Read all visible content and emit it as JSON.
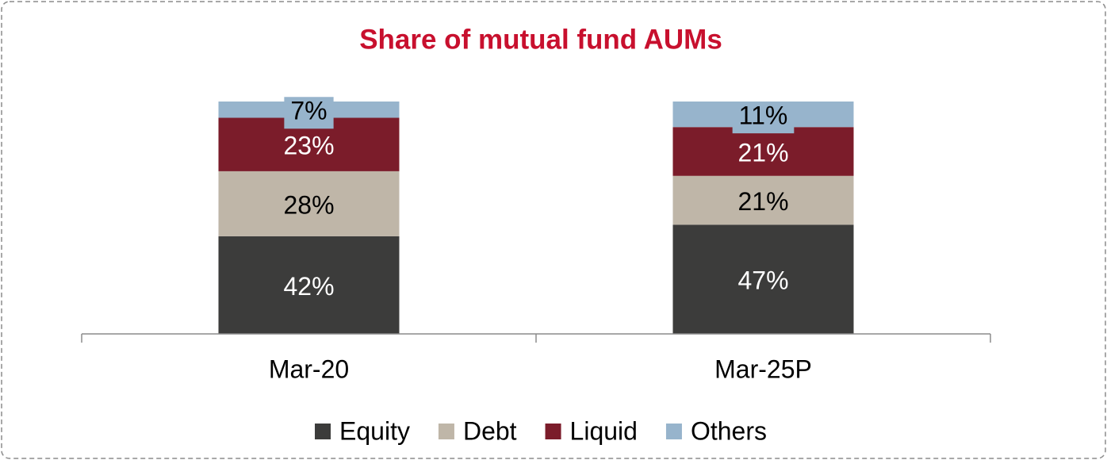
{
  "chart_data": {
    "type": "stacked_bar",
    "title": "Share of mutual fund AUMs",
    "categories": [
      "Mar-20",
      "Mar-25P"
    ],
    "series": [
      {
        "name": "Equity",
        "color": "#3c3c3b",
        "values": [
          42,
          47
        ],
        "value_labels": [
          "42%",
          "47%"
        ]
      },
      {
        "name": "Debt",
        "color": "#bfb6a8",
        "values": [
          28,
          21
        ],
        "value_labels": [
          "28%",
          "21%"
        ]
      },
      {
        "name": "Liquid",
        "color": "#7b1c2a",
        "values": [
          23,
          21
        ],
        "value_labels": [
          "23%",
          "21%"
        ]
      },
      {
        "name": "Others",
        "color": "#97b4cc",
        "values": [
          7,
          11
        ],
        "value_labels": [
          "7%",
          "11%"
        ]
      }
    ],
    "ylim": [
      0,
      100
    ],
    "legend": "bottom"
  }
}
